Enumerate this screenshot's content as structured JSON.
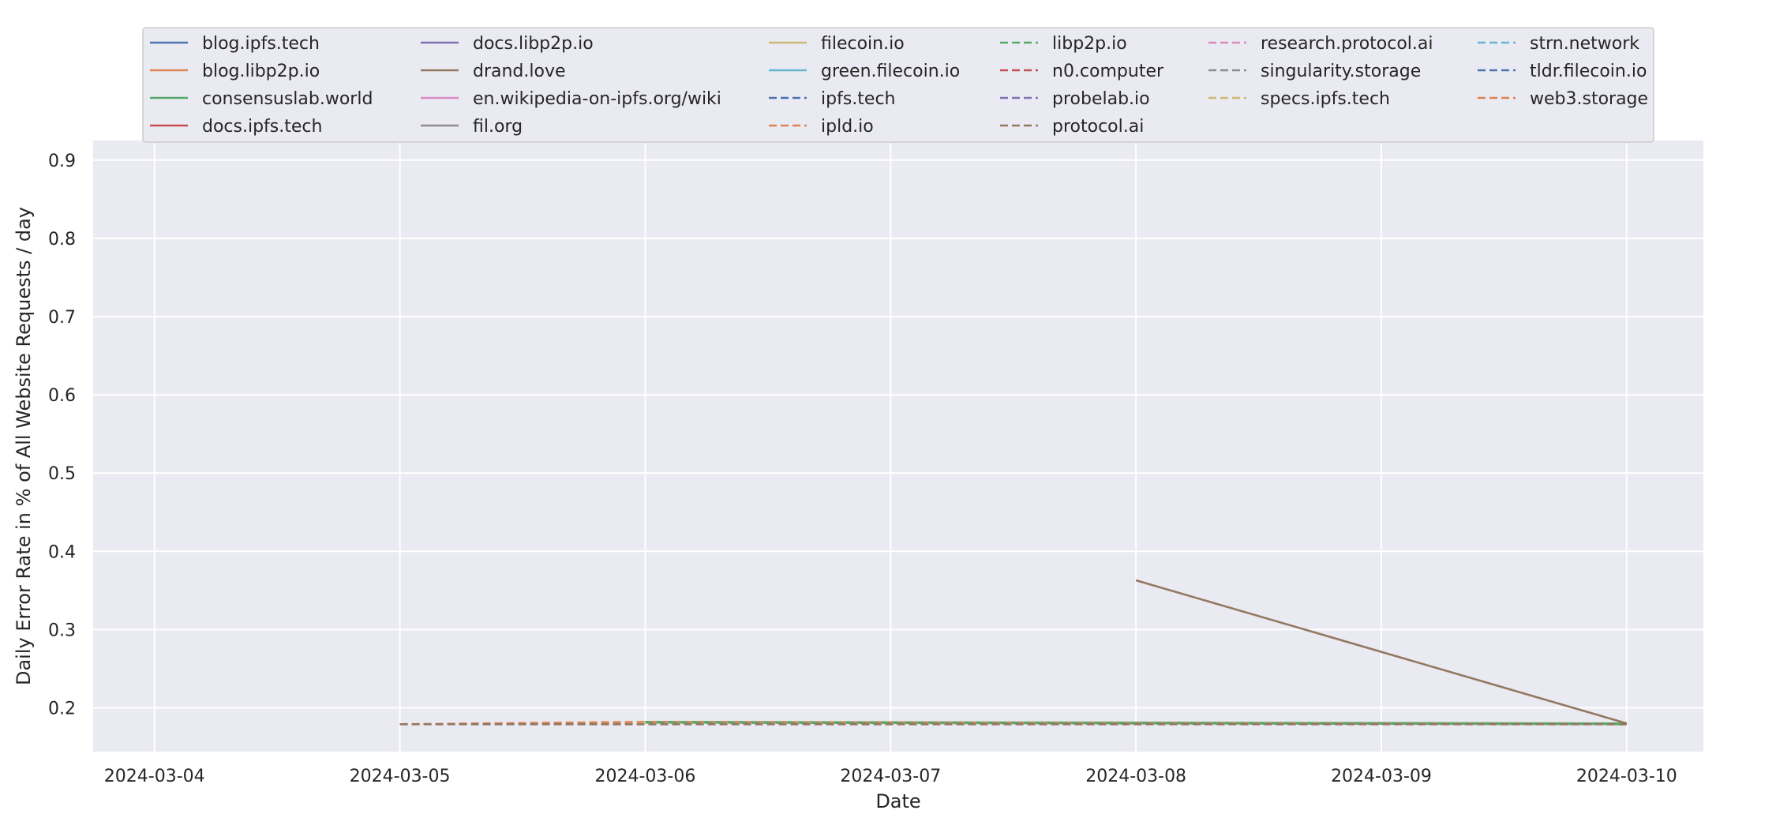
{
  "chart_data": {
    "type": "line",
    "title": "",
    "xlabel": "Date",
    "ylabel": "Daily Error Rate in % of All Website Requests / day",
    "x_ticks": [
      "2024-03-04",
      "2024-03-05",
      "2024-03-06",
      "2024-03-07",
      "2024-03-08",
      "2024-03-09",
      "2024-03-10"
    ],
    "xlim": [
      "2024-03-03T18:00",
      "2024-03-10T07:30"
    ],
    "y_ticks": [
      "0.2",
      "0.3",
      "0.4",
      "0.5",
      "0.6",
      "0.7",
      "0.8",
      "0.9"
    ],
    "ylim": [
      0.144,
      0.925
    ],
    "grid": true,
    "legend_placement": "top-center",
    "series": [
      {
        "name": "blog.ipfs.tech",
        "color": "#4c72b0",
        "dash": "solid",
        "points": []
      },
      {
        "name": "blog.libp2p.io",
        "color": "#dd8452",
        "dash": "solid",
        "points": []
      },
      {
        "name": "consensuslab.world",
        "color": "#55a868",
        "dash": "solid",
        "points": [
          [
            "2024-03-06",
            0.182
          ],
          [
            "2024-03-10",
            0.18
          ]
        ]
      },
      {
        "name": "docs.ipfs.tech",
        "color": "#c44e52",
        "dash": "solid",
        "points": []
      },
      {
        "name": "docs.libp2p.io",
        "color": "#8172b3",
        "dash": "solid",
        "points": []
      },
      {
        "name": "drand.love",
        "color": "#937860",
        "dash": "solid",
        "points": [
          [
            "2024-03-08",
            0.363
          ],
          [
            "2024-03-10",
            0.18
          ]
        ]
      },
      {
        "name": "en.wikipedia-on-ipfs.org/wiki",
        "color": "#da8bc3",
        "dash": "solid",
        "points": []
      },
      {
        "name": "fil.org",
        "color": "#8c8c8c",
        "dash": "solid",
        "points": []
      },
      {
        "name": "filecoin.io",
        "color": "#ccb974",
        "dash": "solid",
        "points": []
      },
      {
        "name": "green.filecoin.io",
        "color": "#64b5cd",
        "dash": "solid",
        "points": []
      },
      {
        "name": "ipfs.tech",
        "color": "#4c72b0",
        "dash": "dashed",
        "points": []
      },
      {
        "name": "ipld.io",
        "color": "#dd8452",
        "dash": "dashed",
        "points": [
          [
            "2024-03-05",
            0.179
          ],
          [
            "2024-03-06",
            0.182
          ],
          [
            "2024-03-10",
            0.179
          ]
        ]
      },
      {
        "name": "libp2p.io",
        "color": "#55a868",
        "dash": "dashed",
        "points": [
          [
            "2024-03-06",
            0.181
          ],
          [
            "2024-03-10",
            0.179
          ]
        ]
      },
      {
        "name": "n0.computer",
        "color": "#c44e52",
        "dash": "dashed",
        "points": []
      },
      {
        "name": "probelab.io",
        "color": "#8172b3",
        "dash": "dashed",
        "points": []
      },
      {
        "name": "protocol.ai",
        "color": "#937860",
        "dash": "dashed",
        "points": [
          [
            "2024-03-05",
            0.179
          ],
          [
            "2024-03-10",
            0.179
          ]
        ]
      },
      {
        "name": "research.protocol.ai",
        "color": "#da8bc3",
        "dash": "dashed",
        "points": []
      },
      {
        "name": "singularity.storage",
        "color": "#8c8c8c",
        "dash": "dashed",
        "points": []
      },
      {
        "name": "specs.ipfs.tech",
        "color": "#ccb974",
        "dash": "dashed",
        "points": []
      },
      {
        "name": "strn.network",
        "color": "#64b5cd",
        "dash": "dashed",
        "points": []
      },
      {
        "name": "tldr.filecoin.io",
        "color": "#4c72b0",
        "dash": "dashed",
        "points": []
      },
      {
        "name": "web3.storage",
        "color": "#dd8452",
        "dash": "dashed",
        "points": []
      }
    ]
  }
}
